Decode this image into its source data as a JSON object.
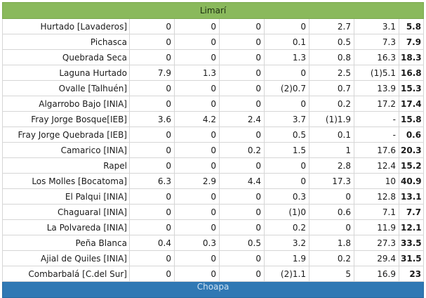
{
  "region_title": "Limarí",
  "next_region_title": "Choapa",
  "rows": [
    {
      "name": "Hurtado [Lavaderos]",
      "v": [
        "0",
        "0",
        "0",
        "0",
        "2.7",
        "3.1"
      ],
      "total": "5.8"
    },
    {
      "name": "Pichasca",
      "v": [
        "0",
        "0",
        "0",
        "0.1",
        "0.5",
        "7.3"
      ],
      "total": "7.9"
    },
    {
      "name": "Quebrada Seca",
      "v": [
        "0",
        "0",
        "0",
        "1.3",
        "0.8",
        "16.3"
      ],
      "total": "18.3"
    },
    {
      "name": "Laguna Hurtado",
      "v": [
        "7.9",
        "1.3",
        "0",
        "0",
        "2.5",
        "(1)5.1"
      ],
      "total": "16.8"
    },
    {
      "name": "Ovalle [Talhuén]",
      "v": [
        "0",
        "0",
        "0",
        "(2)0.7",
        "0.7",
        "13.9"
      ],
      "total": "15.3"
    },
    {
      "name": "Algarrobo Bajo [INIA]",
      "v": [
        "0",
        "0",
        "0",
        "0",
        "0.2",
        "17.2"
      ],
      "total": "17.4"
    },
    {
      "name": "Fray Jorge Bosque[IEB]",
      "v": [
        "3.6",
        "4.2",
        "2.4",
        "3.7",
        "(1)1.9",
        "-"
      ],
      "total": "15.8"
    },
    {
      "name": "Fray Jorge Quebrada [IEB]",
      "v": [
        "0",
        "0",
        "0",
        "0.5",
        "0.1",
        "-"
      ],
      "total": "0.6"
    },
    {
      "name": "Camarico [INIA]",
      "v": [
        "0",
        "0",
        "0.2",
        "1.5",
        "1",
        "17.6"
      ],
      "total": "20.3"
    },
    {
      "name": "Rapel",
      "v": [
        "0",
        "0",
        "0",
        "0",
        "2.8",
        "12.4"
      ],
      "total": "15.2"
    },
    {
      "name": "Los Molles [Bocatoma]",
      "v": [
        "6.3",
        "2.9",
        "4.4",
        "0",
        "17.3",
        "10"
      ],
      "total": "40.9"
    },
    {
      "name": "El Palqui [INIA]",
      "v": [
        "0",
        "0",
        "0",
        "0.3",
        "0",
        "12.8"
      ],
      "total": "13.1"
    },
    {
      "name": "Chaguaral [INIA]",
      "v": [
        "0",
        "0",
        "0",
        "(1)0",
        "0.6",
        "7.1"
      ],
      "total": "7.7"
    },
    {
      "name": "La Polvareda [INIA]",
      "v": [
        "0",
        "0",
        "0",
        "0.2",
        "0",
        "11.9"
      ],
      "total": "12.1"
    },
    {
      "name": "Peña Blanca",
      "v": [
        "0.4",
        "0.3",
        "0.5",
        "3.2",
        "1.8",
        "27.3"
      ],
      "total": "33.5"
    },
    {
      "name": "Ajial de Quiles [INIA]",
      "v": [
        "0",
        "0",
        "0",
        "1.9",
        "0.2",
        "29.4"
      ],
      "total": "31.5"
    },
    {
      "name": "Combarbalá [C.del Sur]",
      "v": [
        "0",
        "0",
        "0",
        "(2)1.1",
        "5",
        "16.9"
      ],
      "total": "23"
    }
  ]
}
